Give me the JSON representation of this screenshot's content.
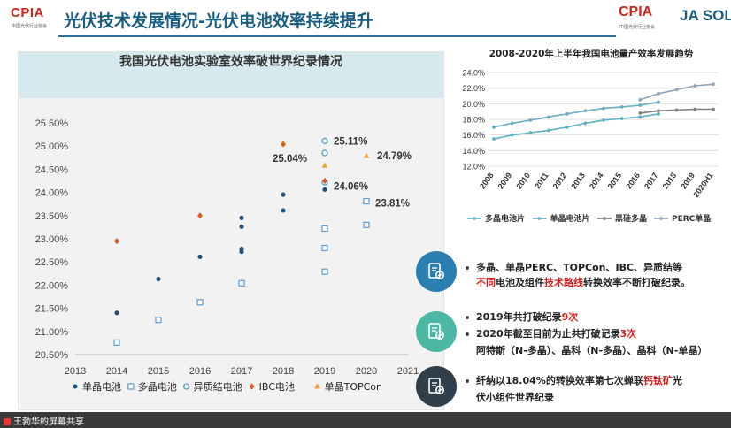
{
  "header": {
    "logo_left": "CPIA",
    "logo_left_sub": "中国光伏行业协会",
    "title": "光伏技术发展情况-光伏电池效率持续提升",
    "logo_right": "CPIA",
    "logo_right_sub": "中国光伏行业协会",
    "logo_ja": "JA SOLA"
  },
  "left_chart_title": "我国光伏电池实验室效率破世界纪录情况",
  "colors": {
    "mono": "#1f4e79",
    "multi": "#5b9bd5",
    "hetero": "#4f9fc3",
    "ibc": "#e05a1c",
    "topcon": "#e7a33a",
    "title_blue": "#1a5d82"
  },
  "chart_data": [
    {
      "type": "scatter",
      "title": "我国光伏电池实验室效率破世界纪录情况",
      "xlabel": "",
      "ylabel": "",
      "xlim": [
        2013,
        2021
      ],
      "ylim": [
        20.5,
        25.5
      ],
      "x_ticks": [
        "2013",
        "2014",
        "2015",
        "2016",
        "2017",
        "2018",
        "2019",
        "2020",
        "2021"
      ],
      "y_ticks": [
        "20.50%",
        "21.00%",
        "21.50%",
        "22.00%",
        "22.50%",
        "23.00%",
        "23.50%",
        "24.00%",
        "24.50%",
        "25.00%",
        "25.50%"
      ],
      "legend_position": "bottom",
      "series": [
        {
          "name": "单晶电池",
          "marker": "dot",
          "points": [
            [
              2014,
              21.4
            ],
            [
              2015,
              22.13
            ],
            [
              2016,
              22.61
            ],
            [
              2017,
              23.45
            ],
            [
              2017,
              23.26
            ],
            [
              2017,
              22.78
            ],
            [
              2017,
              22.72
            ],
            [
              2018,
              23.95
            ],
            [
              2018,
              23.61
            ],
            [
              2019,
              24.06
            ]
          ]
        },
        {
          "name": "多晶电池",
          "marker": "square",
          "points": [
            [
              2014,
              20.76
            ],
            [
              2015,
              21.25
            ],
            [
              2016,
              21.63
            ],
            [
              2017,
              22.04
            ],
            [
              2019,
              23.22
            ],
            [
              2019,
              22.8
            ],
            [
              2019,
              22.29
            ],
            [
              2020,
              23.81
            ],
            [
              2020,
              23.3
            ]
          ]
        },
        {
          "name": "异质结电池",
          "marker": "circle",
          "points": [
            [
              2019,
              25.11
            ],
            [
              2019,
              24.85
            ],
            [
              2019,
              24.22
            ]
          ]
        },
        {
          "name": "IBC电池",
          "marker": "diamond",
          "points": [
            [
              2014,
              22.95
            ],
            [
              2016,
              23.5
            ],
            [
              2018,
              25.04
            ],
            [
              2019,
              24.25
            ]
          ]
        },
        {
          "name": "单晶TOPCon",
          "marker": "triangle",
          "points": [
            [
              2019,
              24.58
            ],
            [
              2020,
              24.79
            ]
          ]
        }
      ],
      "annotations": [
        {
          "text": "25.11%",
          "x": 2019,
          "y": 25.11
        },
        {
          "text": "25.04%",
          "x": 2018,
          "y": 25.04
        },
        {
          "text": "24.79%",
          "x": 2020,
          "y": 24.79
        },
        {
          "text": "24.06%",
          "x": 2019,
          "y": 24.06
        },
        {
          "text": "23.81%",
          "x": 2020,
          "y": 23.81
        }
      ]
    },
    {
      "type": "line",
      "title": "2008-2020年上半年我国电池量产效率发展趋势",
      "categories": [
        "2008",
        "2009",
        "2010",
        "2011",
        "2012",
        "2013",
        "2014",
        "2015",
        "2016",
        "2017",
        "2018",
        "2019",
        "2020H1"
      ],
      "ylim": [
        12,
        24
      ],
      "y_ticks": [
        "24.0%",
        "22.0%",
        "20.0%",
        "18.0%",
        "16.0%",
        "14.0%",
        "12.0%"
      ],
      "grid": true,
      "legend_position": "bottom",
      "series": [
        {
          "name": "多晶电池片",
          "values": [
            15.5,
            16.0,
            16.3,
            16.6,
            17.0,
            17.5,
            17.9,
            18.1,
            18.3,
            18.7,
            null,
            null,
            null
          ]
        },
        {
          "name": "单晶电池片",
          "values": [
            17.0,
            17.5,
            17.9,
            18.3,
            18.7,
            19.1,
            19.4,
            19.6,
            19.8,
            20.2,
            null,
            null,
            null
          ]
        },
        {
          "name": "黑硅多晶",
          "values": [
            null,
            null,
            null,
            null,
            null,
            null,
            null,
            null,
            18.8,
            19.1,
            19.2,
            19.3,
            19.3
          ]
        },
        {
          "name": "PERC单晶",
          "values": [
            null,
            null,
            null,
            null,
            null,
            null,
            null,
            null,
            20.5,
            21.3,
            21.8,
            22.3,
            22.5
          ]
        }
      ]
    }
  ],
  "bullets": [
    {
      "icon": "document-check-icon",
      "lines": [
        [
          {
            "t": "多晶、单晶PERC、TOPCon、IBC、异质结等",
            "s": "b"
          }
        ],
        [
          {
            "t": "不同",
            "s": "r"
          },
          {
            "t": "电池及组件",
            "s": "b"
          },
          {
            "t": "技术路线",
            "s": "r"
          },
          {
            "t": "转换效率不断打破纪录。",
            "s": "b"
          }
        ]
      ]
    },
    {
      "icon": "document-check-icon",
      "lines": [
        [
          {
            "t": "2019年共打破纪录",
            "s": "b"
          },
          {
            "t": "9次",
            "s": "r"
          }
        ],
        [
          {
            "t": "2020年截至目前为止共打破记录",
            "s": "b"
          },
          {
            "t": "3次",
            "s": "r"
          }
        ],
        [
          {
            "t": "阿特斯（N-多晶）、晶科（N-多晶）、晶科（N-单晶）",
            "s": "b"
          }
        ]
      ]
    },
    {
      "icon": "document-check-icon",
      "lines": [
        [
          {
            "t": "纤纳以18.04%的转换效率第七次蝉联",
            "s": "b"
          },
          {
            "t": "钙钛矿",
            "s": "r"
          },
          {
            "t": "光",
            "s": "b"
          }
        ],
        [
          {
            "t": "伏小组件世界纪录",
            "s": "b"
          }
        ]
      ]
    }
  ],
  "screen_share_label": "王勃华的屏幕共享"
}
